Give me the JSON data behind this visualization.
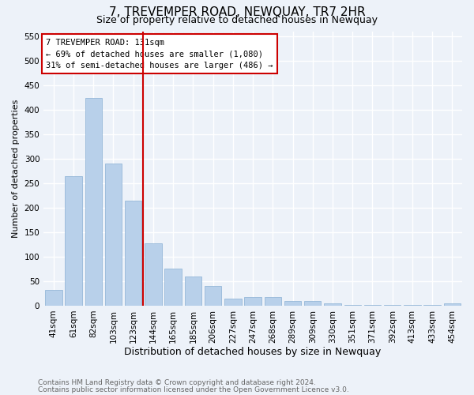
{
  "title": "7, TREVEMPER ROAD, NEWQUAY, TR7 2HR",
  "subtitle": "Size of property relative to detached houses in Newquay",
  "xlabel": "Distribution of detached houses by size in Newquay",
  "ylabel": "Number of detached properties",
  "footnote1": "Contains HM Land Registry data © Crown copyright and database right 2024.",
  "footnote2": "Contains public sector information licensed under the Open Government Licence v3.0.",
  "bar_labels": [
    "41sqm",
    "61sqm",
    "82sqm",
    "103sqm",
    "123sqm",
    "144sqm",
    "165sqm",
    "185sqm",
    "206sqm",
    "227sqm",
    "247sqm",
    "268sqm",
    "289sqm",
    "309sqm",
    "330sqm",
    "351sqm",
    "371sqm",
    "392sqm",
    "413sqm",
    "433sqm",
    "454sqm"
  ],
  "bar_values": [
    32,
    265,
    425,
    290,
    215,
    128,
    76,
    60,
    40,
    15,
    17,
    17,
    10,
    10,
    5,
    2,
    2,
    2,
    1,
    2,
    5
  ],
  "bar_color": "#b8d0ea",
  "bar_edge_color": "#8ab0d4",
  "vline_x": 4.5,
  "vline_color": "#cc0000",
  "annotation_text": "7 TREVEMPER ROAD: 131sqm\n← 69% of detached houses are smaller (1,080)\n31% of semi-detached houses are larger (486) →",
  "annotation_box_color": "#cc0000",
  "ylim": [
    0,
    560
  ],
  "yticks": [
    0,
    50,
    100,
    150,
    200,
    250,
    300,
    350,
    400,
    450,
    500,
    550
  ],
  "background_color": "#edf2f9",
  "grid_color": "#ffffff",
  "title_fontsize": 11,
  "subtitle_fontsize": 9,
  "ylabel_fontsize": 8,
  "xlabel_fontsize": 9,
  "tick_fontsize": 7.5,
  "footnote_fontsize": 6.5,
  "footnote_color": "#666666"
}
